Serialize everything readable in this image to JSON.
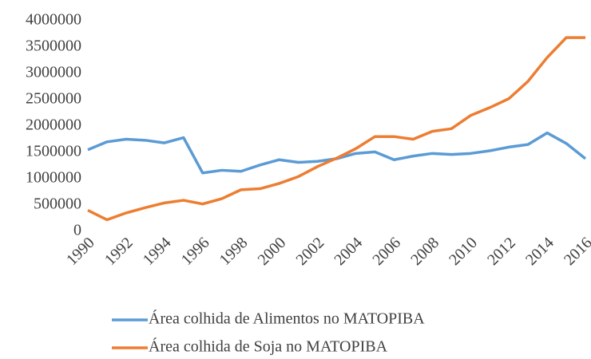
{
  "chart_data": {
    "type": "line",
    "categories": [
      "1990",
      null,
      "1992",
      null,
      "1994",
      null,
      "1996",
      null,
      "1998",
      null,
      "2000",
      null,
      "2002",
      null,
      "2004",
      null,
      "2006",
      null,
      "2008",
      null,
      "2010",
      null,
      "2012",
      null,
      "2014",
      null,
      "2016"
    ],
    "series": [
      {
        "name": "Área colhida de Alimentos no MATOPIBA",
        "color": "#5b9bd5",
        "values": [
          1550000,
          1700000,
          1750000,
          1730000,
          1680000,
          1780000,
          1110000,
          1160000,
          1140000,
          1260000,
          1360000,
          1310000,
          1330000,
          1380000,
          1480000,
          1510000,
          1360000,
          1430000,
          1480000,
          1460000,
          1480000,
          1530000,
          1600000,
          1650000,
          1870000,
          1670000,
          1380000
        ]
      },
      {
        "name": "Área colhida de Soja no MATOPIBA",
        "color": "#ed7d31",
        "values": [
          400000,
          220000,
          350000,
          450000,
          540000,
          590000,
          520000,
          620000,
          790000,
          810000,
          910000,
          1040000,
          1230000,
          1390000,
          1570000,
          1800000,
          1800000,
          1750000,
          1900000,
          1950000,
          2200000,
          2350000,
          2520000,
          2850000,
          3300000,
          3680000,
          3680000
        ]
      }
    ],
    "ylim": [
      0,
      4000000
    ],
    "yticks": [
      0,
      500000,
      1000000,
      1500000,
      2000000,
      2500000,
      3000000,
      3500000,
      4000000
    ],
    "grid": false,
    "legend": "bottom"
  }
}
